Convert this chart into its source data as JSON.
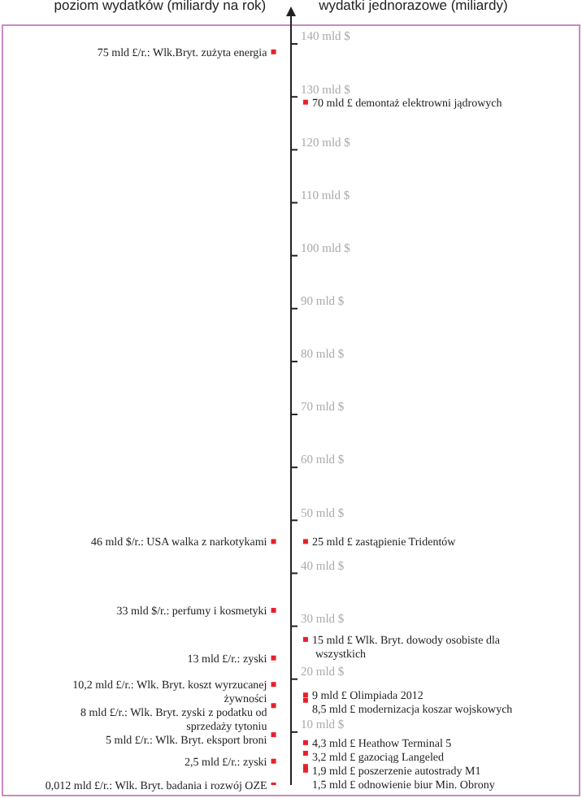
{
  "chart_data": {
    "type": "scatter",
    "categories": [
      "poziom wydatków (miliardy na rok)",
      "wydatki jednorazowe (miliardy)"
    ],
    "ylim": [
      0,
      144
    ],
    "yticks": [
      {
        "value": 10,
        "label": "10 mld $"
      },
      {
        "value": 20,
        "label": "20 mld $"
      },
      {
        "value": 30,
        "label": "30 mld $"
      },
      {
        "value": 40,
        "label": "40 mld $"
      },
      {
        "value": 50,
        "label": "50 mld $"
      },
      {
        "value": 60,
        "label": "60 mld $"
      },
      {
        "value": 70,
        "label": "70 mld $"
      },
      {
        "value": 80,
        "label": "80 mld $"
      },
      {
        "value": 90,
        "label": "90 mld $"
      },
      {
        "value": 100,
        "label": "100 mld $"
      },
      {
        "value": 110,
        "label": "110 mld $"
      },
      {
        "value": 120,
        "label": "120 mld $"
      },
      {
        "value": 130,
        "label": "130 mld $"
      },
      {
        "value": 140,
        "label": "140 mld $"
      }
    ],
    "marker": "square",
    "series": [
      {
        "color": "#e8202a",
        "x": [
          "poziom wydatków (miliardy na rok)",
          "poziom wydatków (miliardy na rok)",
          "poziom wydatków (miliardy na rok)",
          "poziom wydatków (miliardy na rok)",
          "poziom wydatków (miliardy na rok)",
          "poziom wydatków (miliardy na rok)",
          "poziom wydatków (miliardy na rok)",
          "poziom wydatków (miliardy na rok)",
          "poziom wydatków (miliardy na rok)"
        ],
        "values": [
          138.5,
          46,
          33,
          24,
          19,
          15,
          9.5,
          4.5,
          0
        ]
      },
      {
        "color": "#e8202a",
        "x": [
          "wydatki jednorazowe (miliardy)",
          "wydatki jednorazowe (miliardy)",
          "wydatki jednorazowe (miliardy)",
          "wydatki jednorazowe (miliardy)",
          "wydatki jednorazowe (miliardy)",
          "wydatki jednorazowe (miliardy)",
          "wydatki jednorazowe (miliardy)",
          "wydatki jednorazowe (miliardy)",
          "wydatki jednorazowe (miliardy)"
        ],
        "values": [
          129,
          46,
          27.5,
          17,
          16,
          8,
          6,
          3.5,
          2.8
        ]
      }
    ],
    "annotations": [
      "75 mld £/r.: Wlk.Bryt. zużyta energia",
      "46 mld $/r.: USA walka z narkotykami",
      "33 mld $/r.: perfumy i kosmetyki",
      "13 mld £/r.: zyski",
      "10,2 mld £/r.: Wlk. Bryt. koszt wyrzucanej żywności",
      "8 mld £/r.: Wlk. Bryt. zyski z podatku od sprzedaży tytoniu",
      "5 mld £/r.: Wlk. Bryt. eksport broni",
      "2,5 mld £/r.: zyski",
      "0,012 mld £/r.: Wlk. Bryt. badania i rozwój OZE",
      "70 mld £ demontaż elektrowni jądrowych",
      "25 mld £ zastąpienie Tridentów",
      "15 mld £ Wlk. Bryt. dowody osobiste dla wszystkich",
      "9 mld £ Olimpiada 2012",
      "8,5 mld £ modernizacja koszar wojskowych",
      "4,3 mld £ Heathow Terminal 5",
      "3,2 mld £ gazociąg Langeled",
      "1,9 mld £ poszerzenie autostrady M1",
      "1,5 mld £ odnowienie biur Min. Obrony"
    ]
  }
}
